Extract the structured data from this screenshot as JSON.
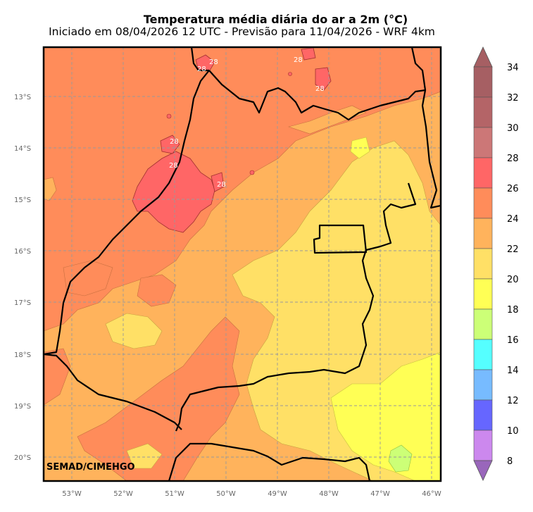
{
  "title": "Temperatura média diária do ar a 2m (°C)",
  "subtitle": "Iniciado em 08/04/2026 12 UTC - Previsão para 11/04/2026 - WRF 4km",
  "credit": "SEMAD/CIMEHGO",
  "lon_labels": [
    "53°W",
    "52°W",
    "51°W",
    "50°W",
    "49°W",
    "48°W",
    "47°W",
    "46°W"
  ],
  "lat_labels": [
    "13°S",
    "14°S",
    "15°S",
    "16°S",
    "17°S",
    "18°S",
    "19°S",
    "20°S"
  ],
  "contour_labels": [
    "28",
    "28",
    "28",
    "28",
    "28",
    "28",
    "28"
  ],
  "colorbar": {
    "ticks": [
      "34",
      "32",
      "30",
      "28",
      "26",
      "24",
      "22",
      "20",
      "18",
      "16",
      "14",
      "12",
      "10",
      "8"
    ],
    "colors": [
      "#a65f63",
      "#b46467",
      "#cc7777",
      "#ff6666",
      "#ff8c5a",
      "#ffb35c",
      "#ffe066",
      "#ffff55",
      "#ccff77",
      "#55ffff",
      "#77bbff",
      "#6666ff",
      "#cc88ee",
      "#9966bb"
    ],
    "over_color": "#a65f63",
    "under_color": "#9966bb"
  },
  "colors": {
    "c26_28": "#ff8c5a",
    "c24_26": "#ffb35c",
    "c22_24": "#ffe066",
    "c20_22": "#ffff55",
    "c18_20": "#ccff77",
    "c28_30": "#ff6666"
  }
}
